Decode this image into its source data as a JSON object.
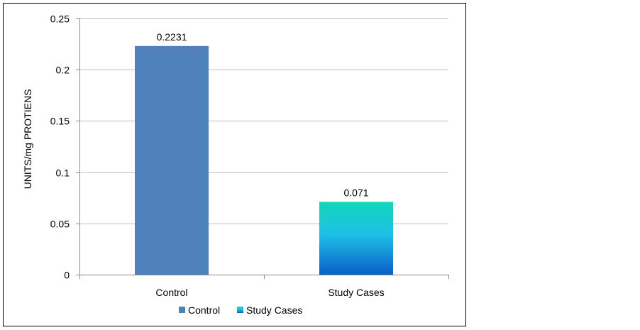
{
  "chart_data": {
    "type": "bar",
    "categories": [
      "Control",
      "Study Cases"
    ],
    "values": [
      0.2231,
      0.071
    ],
    "data_labels": [
      "0.2231",
      "0.071"
    ],
    "title": "",
    "xlabel": "",
    "ylabel": "UNITS/mg PROTIENS",
    "ylim": [
      0,
      0.25
    ],
    "yticks": [
      0,
      0.05,
      0.1,
      0.15,
      0.2,
      0.25
    ],
    "ytick_labels": [
      "0",
      "0.05",
      "0.1",
      "0.15",
      "0.2",
      "0.25"
    ],
    "grid": true,
    "legend": {
      "placement": "bottom",
      "entries": [
        "Control",
        "Study Cases"
      ]
    },
    "colors": {
      "control": "#4f81bd",
      "study_top": "#12d6b8",
      "study_mid": "#1ec0e6",
      "study_bottom": "#0a5fc8",
      "grid": "#bfbfbf",
      "axis": "#8c8c8c"
    }
  }
}
